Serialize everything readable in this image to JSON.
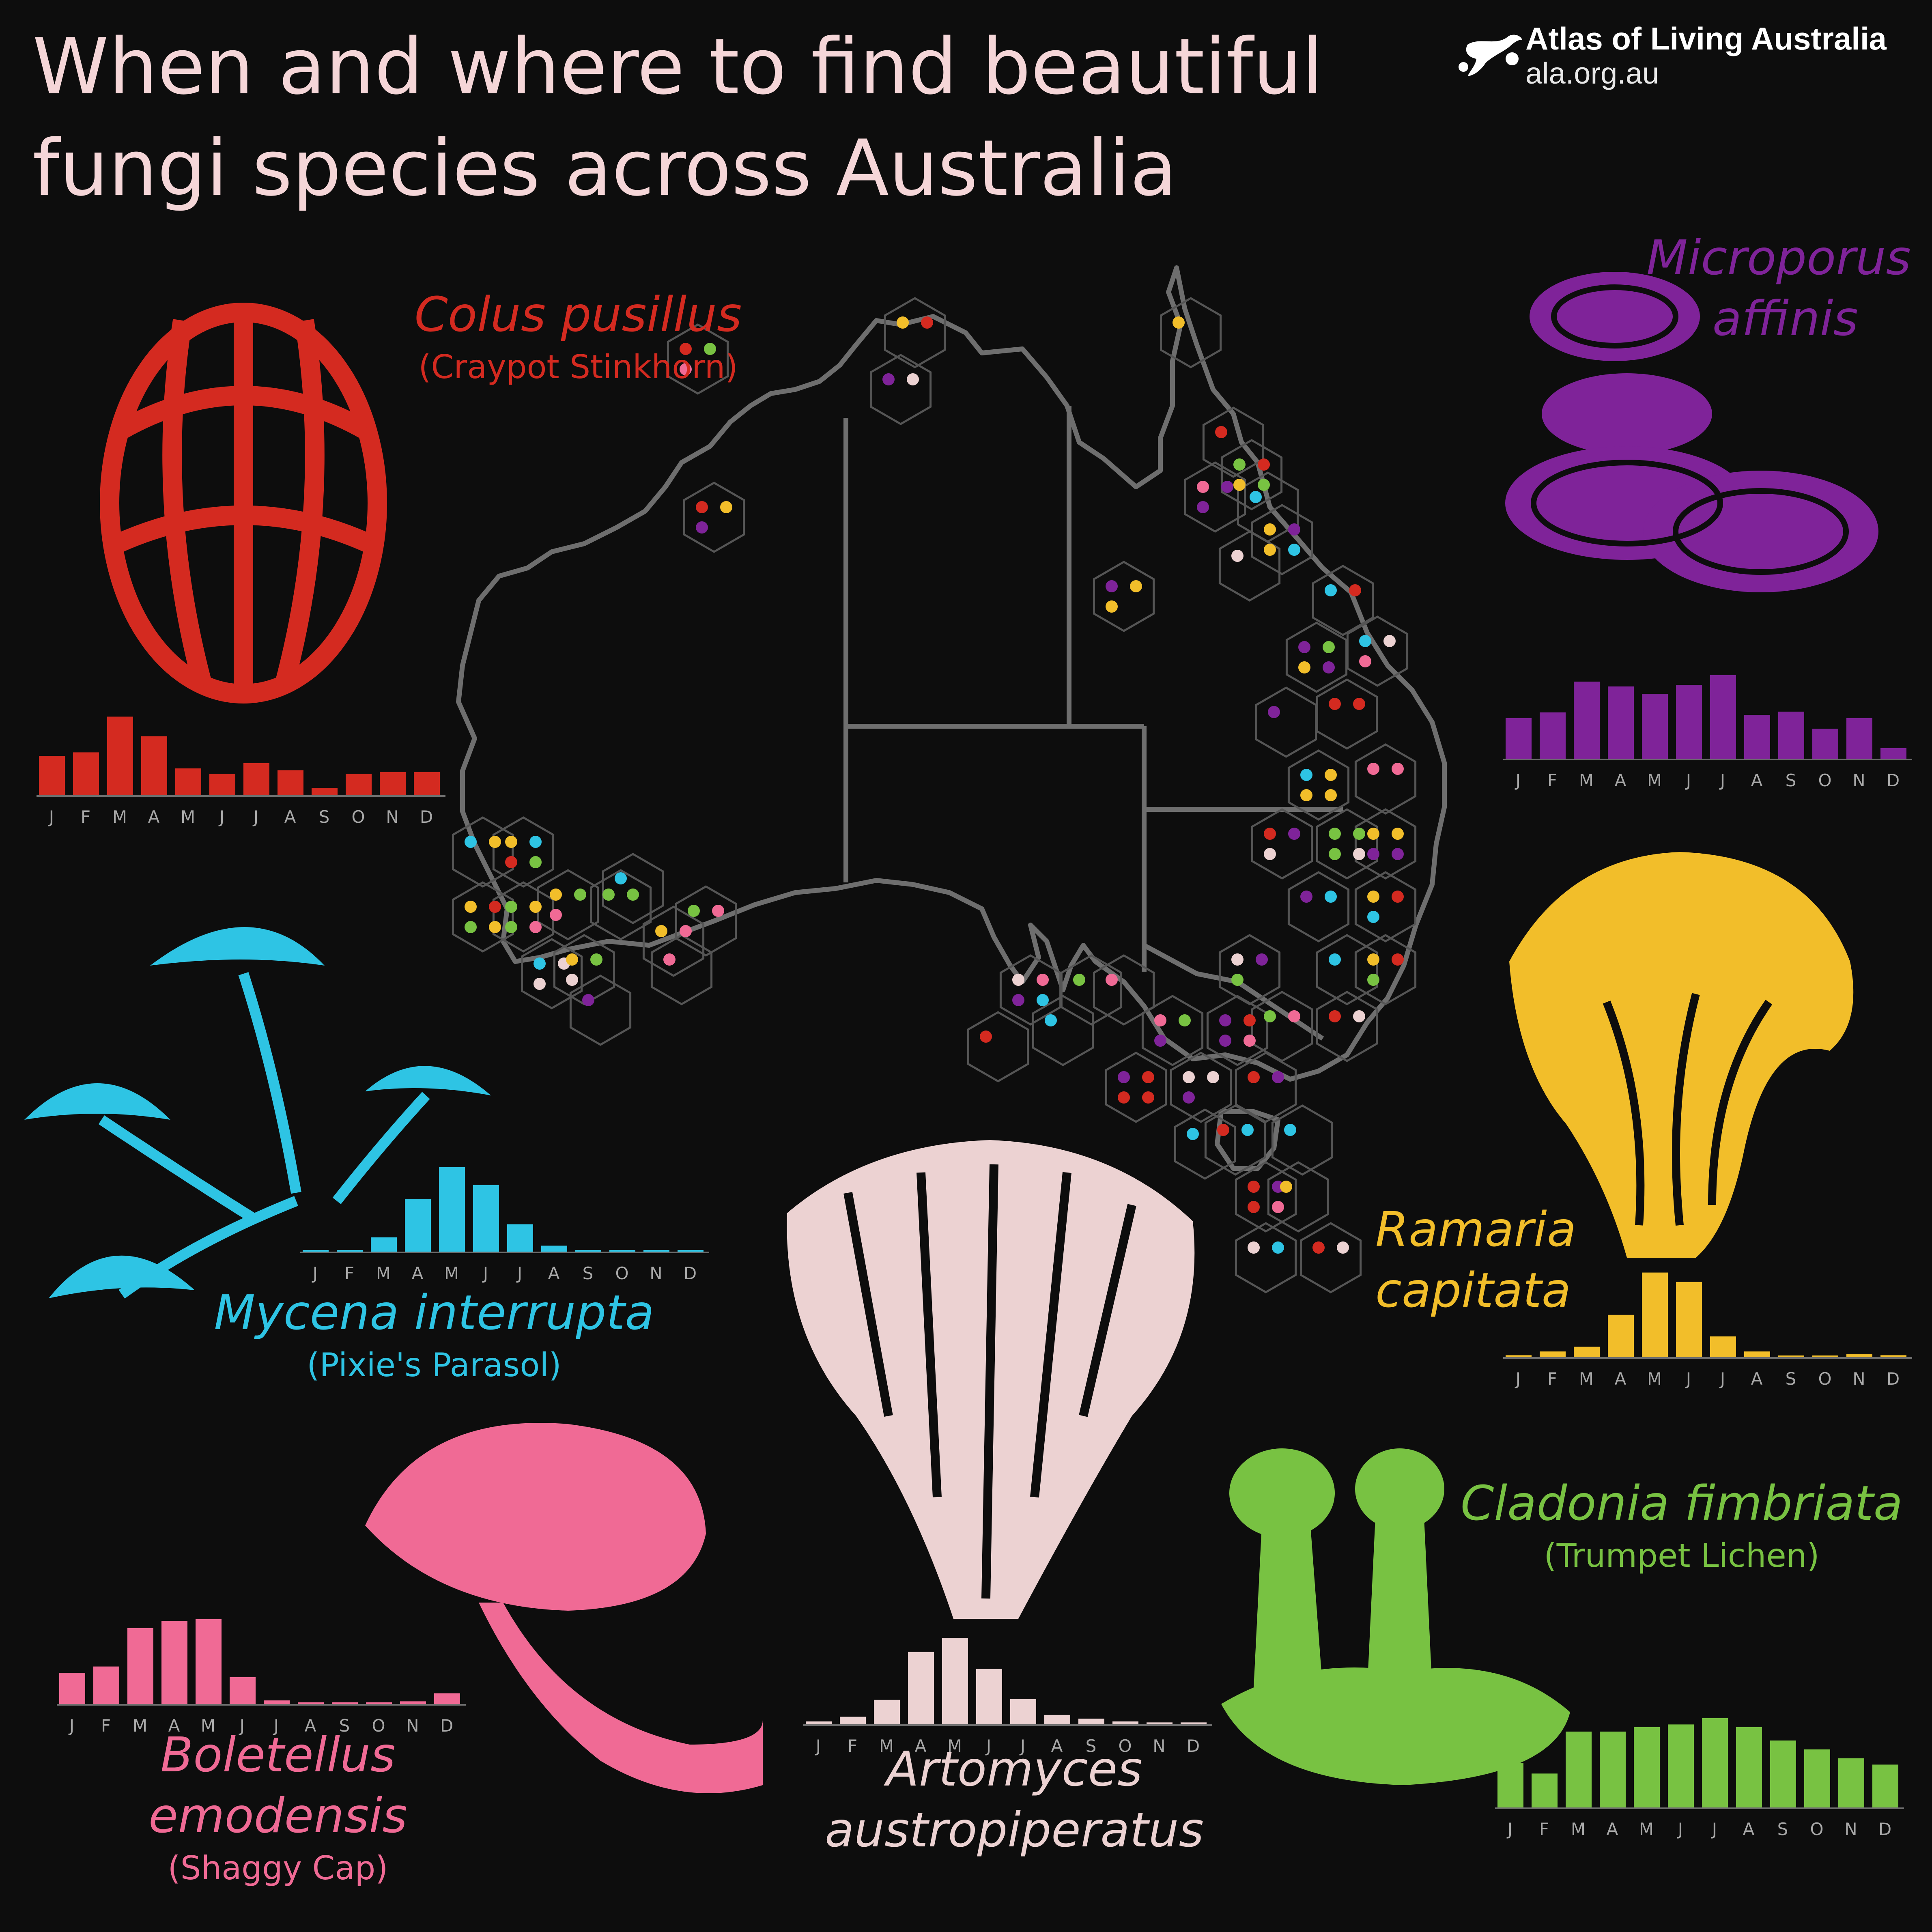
{
  "header": {
    "title_line1": "When and where to find beautiful",
    "title_line2": "fungi species across Australia",
    "brand_name": "Atlas of Living Australia",
    "brand_url": "ala.org.au"
  },
  "icons": {
    "brand_logo": "ala-logo-icon"
  },
  "colors": {
    "background": "#0d0d0d",
    "title": "#f5d6d8",
    "map_stroke": "#6e6e6e",
    "hex_stroke": "#555555",
    "colus": "#d42a20",
    "microporus": "#7f2399",
    "mycena": "#2ec4e4",
    "ramaria": "#f2be2a",
    "boletellus": "#f06a95",
    "artomyces": "#ecd2d2",
    "cladonia": "#78c242"
  },
  "chart_data": [
    {
      "type": "bar",
      "title": "Colus pusillus",
      "subtitle": "(Craypot Stinkhorn)",
      "categories": [
        "J",
        "F",
        "M",
        "A",
        "M",
        "J",
        "J",
        "A",
        "S",
        "O",
        "N",
        "D"
      ],
      "values": [
        22,
        24,
        44,
        33,
        15,
        12,
        18,
        14,
        4,
        12,
        13,
        13
      ],
      "ylim": [
        0,
        50
      ],
      "color": "#d42a20"
    },
    {
      "type": "bar",
      "title": "Microporus affinis",
      "subtitle": "",
      "categories": [
        "J",
        "F",
        "M",
        "A",
        "M",
        "J",
        "J",
        "A",
        "S",
        "O",
        "N",
        "D"
      ],
      "values": [
        50,
        57,
        95,
        89,
        80,
        91,
        103,
        54,
        58,
        37,
        50,
        13
      ],
      "ylim": [
        0,
        110
      ],
      "color": "#7f2399"
    },
    {
      "type": "bar",
      "title": "Mycena interrupta",
      "subtitle": "(Pixie's Parasol)",
      "categories": [
        "J",
        "F",
        "M",
        "A",
        "M",
        "J",
        "J",
        "A",
        "S",
        "O",
        "N",
        "D"
      ],
      "values": [
        1,
        1,
        12,
        44,
        71,
        56,
        23,
        5,
        1,
        1,
        1,
        1
      ],
      "ylim": [
        0,
        75
      ],
      "color": "#2ec4e4"
    },
    {
      "type": "bar",
      "title": "Ramaria capitata",
      "subtitle": "",
      "categories": [
        "J",
        "F",
        "M",
        "A",
        "M",
        "J",
        "J",
        "A",
        "S",
        "O",
        "N",
        "D"
      ],
      "values": [
        2,
        6,
        11,
        45,
        90,
        80,
        22,
        6,
        1,
        1,
        3,
        2
      ],
      "ylim": [
        0,
        95
      ],
      "color": "#f2be2a"
    },
    {
      "type": "bar",
      "title": "Boletellus emodensis",
      "subtitle": "(Shaggy Cap)",
      "categories": [
        "J",
        "F",
        "M",
        "A",
        "M",
        "J",
        "J",
        "A",
        "S",
        "O",
        "N",
        "D"
      ],
      "values": [
        35,
        42,
        85,
        93,
        95,
        30,
        4,
        1,
        1,
        1,
        3,
        12
      ],
      "ylim": [
        0,
        100
      ],
      "color": "#f06a95"
    },
    {
      "type": "bar",
      "title": "Artomyces austropiperatus",
      "subtitle": "",
      "categories": [
        "J",
        "F",
        "M",
        "A",
        "M",
        "J",
        "J",
        "A",
        "S",
        "O",
        "N",
        "D"
      ],
      "values": [
        3,
        8,
        26,
        77,
        92,
        59,
        27,
        10,
        6,
        3,
        2,
        2
      ],
      "ylim": [
        0,
        95
      ],
      "color": "#ecd2d2"
    },
    {
      "type": "bar",
      "title": "Cladonia fimbriata",
      "subtitle": "(Trumpet Lichen)",
      "categories": [
        "J",
        "F",
        "M",
        "A",
        "M",
        "J",
        "J",
        "A",
        "S",
        "O",
        "N",
        "D"
      ],
      "values": [
        50,
        38,
        85,
        85,
        90,
        93,
        100,
        90,
        75,
        65,
        55,
        48
      ],
      "ylim": [
        0,
        100
      ],
      "color": "#78c242"
    }
  ]
}
